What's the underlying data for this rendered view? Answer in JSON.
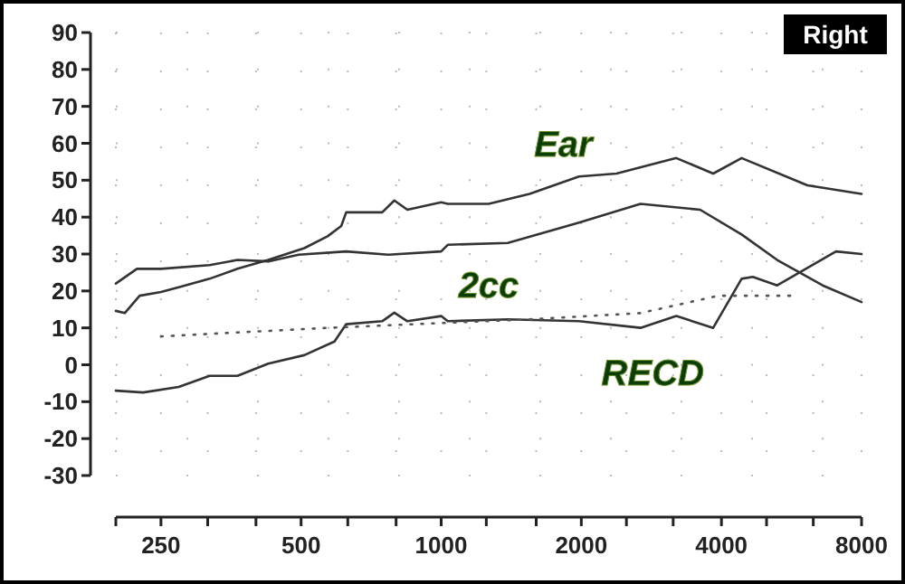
{
  "chart_data": {
    "type": "line",
    "log": "x",
    "grid": true,
    "marker": "none",
    "xlim": [
      200,
      8000
    ],
    "ylim": [
      -30,
      90
    ],
    "xticks": [
      {
        "value": 200,
        "label": null
      },
      250,
      {
        "value": 315,
        "label": null
      },
      {
        "value": 400,
        "label": null
      },
      500,
      {
        "value": 630,
        "label": null
      },
      {
        "value": 800,
        "label": null
      },
      1000,
      {
        "value": 1250,
        "label": null
      },
      {
        "value": 1600,
        "label": null
      },
      2000,
      {
        "value": 2500,
        "label": null
      },
      {
        "value": 3150,
        "label": null
      },
      4000,
      {
        "value": 5000,
        "label": null
      },
      {
        "value": 6300,
        "label": null
      },
      8000
    ],
    "yticks": [
      -30,
      -20,
      -10,
      0,
      10,
      20,
      30,
      40,
      50,
      60,
      70,
      80,
      90
    ],
    "annotations": [
      "Right"
    ],
    "series": [
      {
        "name": "Ear",
        "color": "#333333",
        "line_style": "solid",
        "x": [
          200,
          209,
          225,
          250,
          273,
          318,
          365,
          425,
          508,
          570,
          610,
          625,
          747,
          793,
          846,
          1000,
          1033,
          1265,
          1548,
          1977,
          2380,
          3200,
          3840,
          4420,
          6120,
          8000
        ],
        "values": [
          14.6,
          14,
          18.7,
          19.7,
          21,
          23.3,
          26,
          28.4,
          31.6,
          34.8,
          37.6,
          41.3,
          41.3,
          44.5,
          42,
          44,
          43.6,
          43.6,
          46.3,
          51,
          51.8,
          56,
          51.8,
          56,
          48.6,
          46.3
        ]
      },
      {
        "name": "2cc",
        "color": "#333333",
        "line_style": "solid",
        "x": [
          200,
          222,
          250,
          318,
          365,
          425,
          494,
          625,
          770,
          1000,
          1033,
          1390,
          1977,
          2680,
          3600,
          4420,
          5270,
          6600,
          8000
        ],
        "values": [
          22,
          26,
          26,
          27,
          28.4,
          28,
          29.8,
          30.7,
          29.8,
          30.7,
          32.5,
          33,
          38.5,
          43.6,
          42,
          35.3,
          28.4,
          21.5,
          17
        ]
      },
      {
        "name": "RECD",
        "color": "#333333",
        "line_style": "solid",
        "x": [
          200,
          229,
          273,
          318,
          365,
          425,
          508,
          590,
          625,
          747,
          793,
          846,
          1000,
          1033,
          1390,
          1977,
          2680,
          3200,
          3840,
          4420,
          4670,
          5270,
          7050,
          8000
        ],
        "values": [
          -7,
          -7.5,
          -6,
          -3,
          -3,
          0.3,
          2.6,
          6.3,
          11,
          11.8,
          14.1,
          11.8,
          13.2,
          11.8,
          12.3,
          11.8,
          10,
          13.2,
          10,
          23.3,
          23.8,
          21.5,
          30.7,
          30
        ]
      },
      {
        "color": "#555555",
        "line_style": "dotted",
        "x": [
          250,
          570,
          1548,
          2680,
          3940,
          5720
        ],
        "values": [
          7.7,
          10,
          12.3,
          14,
          18.7,
          18.7
        ]
      }
    ]
  }
}
